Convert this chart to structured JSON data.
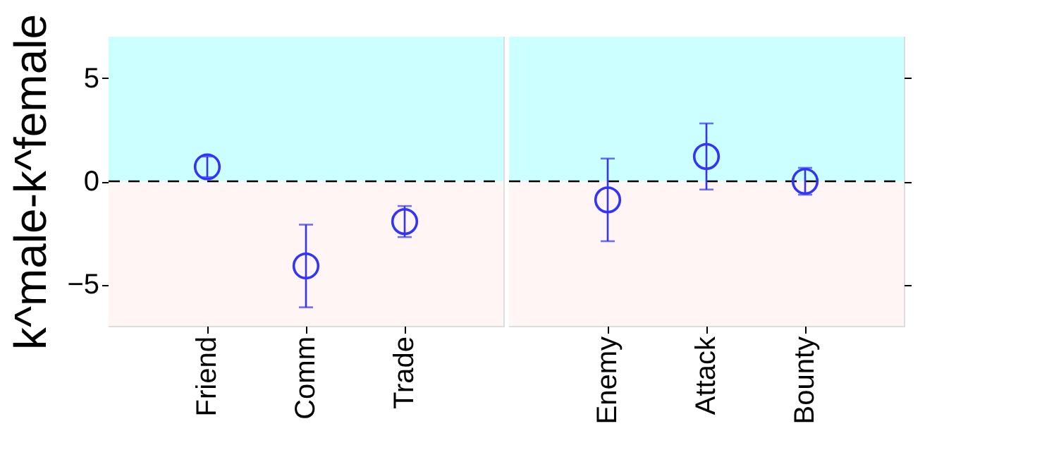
{
  "chart_data": [
    {
      "type": "scatter",
      "ylabel": "k^male-k^female",
      "categories": [
        "Friend",
        "Comm",
        "Trade"
      ],
      "values": [
        0.7,
        -4.1,
        -1.95
      ],
      "errors": [
        0.5,
        2.0,
        0.75
      ],
      "color": "#3333ff",
      "marker": "circle",
      "ylim": [
        -7,
        7
      ],
      "yticks": [
        -5,
        0,
        5
      ],
      "bands": [
        {
          "axis": "y",
          "from": 0,
          "to": 7,
          "color": "#ccffff"
        },
        {
          "axis": "y",
          "from": -7,
          "to": 0,
          "color": "#fff5f5"
        }
      ],
      "ref_lines": [
        {
          "axis": "y",
          "value": 0,
          "line_style": "dashed",
          "color": "#000000"
        }
      ]
    },
    {
      "type": "scatter",
      "categories": [
        "Enemy",
        "Attack",
        "Bounty"
      ],
      "values": [
        -0.9,
        1.2,
        0.0
      ],
      "errors": [
        2.0,
        1.6,
        0.65
      ],
      "color": "#3333ff",
      "marker": "circle",
      "ylim": [
        -7,
        7
      ],
      "yticks": [
        -5,
        0,
        5
      ],
      "tick_labels": "x",
      "bands": [
        {
          "axis": "y",
          "from": 0,
          "to": 7,
          "color": "#ccffff"
        },
        {
          "axis": "y",
          "from": -7,
          "to": 0,
          "color": "#fff5f5"
        }
      ],
      "ref_lines": [
        {
          "axis": "y",
          "value": 0,
          "line_style": "dashed",
          "color": "#000000"
        }
      ]
    }
  ]
}
